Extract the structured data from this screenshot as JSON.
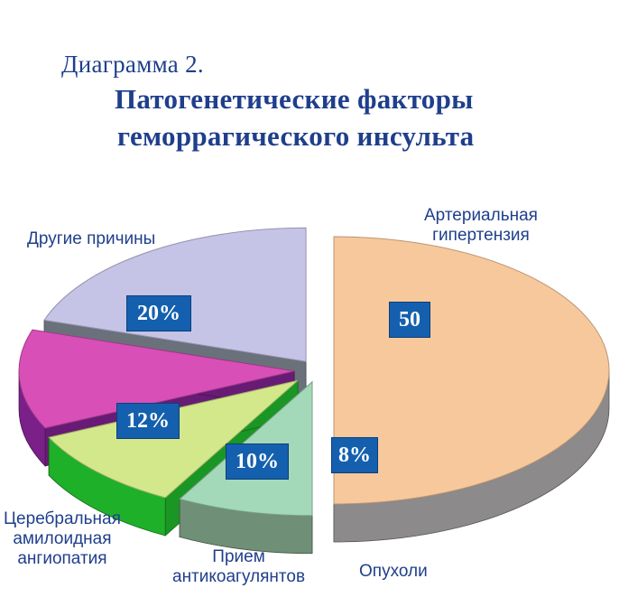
{
  "header": {
    "diagram_no": "Диаграмма 2.",
    "title_line1": "Патогенетические факторы",
    "title_line2": "геморрагического инсульта"
  },
  "chart_data": {
    "type": "pie",
    "title": "Патогенетические факторы геморрагического инсульта",
    "slices": [
      {
        "label_line1": "Артериальная",
        "label_line2": "гипертензия",
        "value": 50,
        "value_text": "50",
        "color": "#f7c89c",
        "side_color": "#8c8a8a"
      },
      {
        "label_line1": "Опухоли",
        "label_line2": "",
        "value": 8,
        "value_text": "8%",
        "color": "#a3d8b8",
        "side_color": "#6f8f76"
      },
      {
        "label_line1": "Прием",
        "label_line2": "антикоагулянтов",
        "value": 10,
        "value_text": "10%",
        "color": "#d3e88a",
        "side_color": "#1fb02a"
      },
      {
        "label_line1": "Церебральная",
        "label_line2": "амилоидная",
        "label_line3": "ангиопатия",
        "value": 12,
        "value_text": "12%",
        "color": "#d84fb8",
        "side_color": "#7a2088"
      },
      {
        "label_line1": "Другие причины",
        "label_line2": "",
        "value": 20,
        "value_text": "20%",
        "color": "#c5c3e6",
        "side_color": "#7d8590"
      }
    ]
  }
}
